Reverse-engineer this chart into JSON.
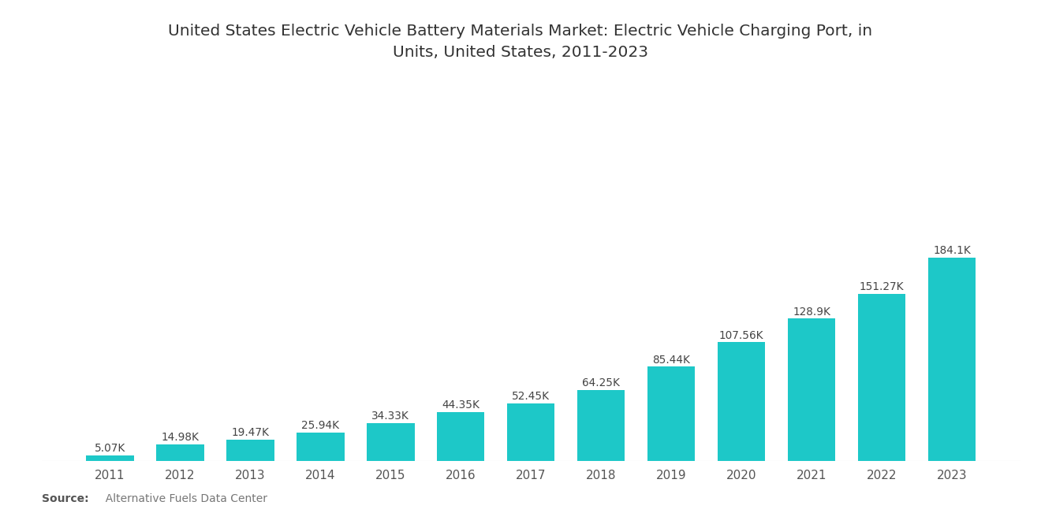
{
  "title_line1": "United States Electric Vehicle Battery Materials Market: Electric Vehicle Charging Port, in",
  "title_line2": "Units, United States, 2011-2023",
  "years": [
    2011,
    2012,
    2013,
    2014,
    2015,
    2016,
    2017,
    2018,
    2019,
    2020,
    2021,
    2022,
    2023
  ],
  "values": [
    5070,
    14980,
    19470,
    25940,
    34330,
    44350,
    52450,
    64250,
    85440,
    107560,
    128900,
    151270,
    184100
  ],
  "labels": [
    "5.07K",
    "14.98K",
    "19.47K",
    "25.94K",
    "34.33K",
    "44.35K",
    "52.45K",
    "64.25K",
    "85.44K",
    "107.56K",
    "128.9K",
    "151.27K",
    "184.1K"
  ],
  "bar_color": "#1DC8C8",
  "background_color": "#ffffff",
  "title_fontsize": 14.5,
  "label_fontsize": 9.8,
  "tick_fontsize": 11,
  "source_bold": "Source:",
  "source_normal": "  Alternative Fuels Data Center",
  "source_fontsize": 10
}
